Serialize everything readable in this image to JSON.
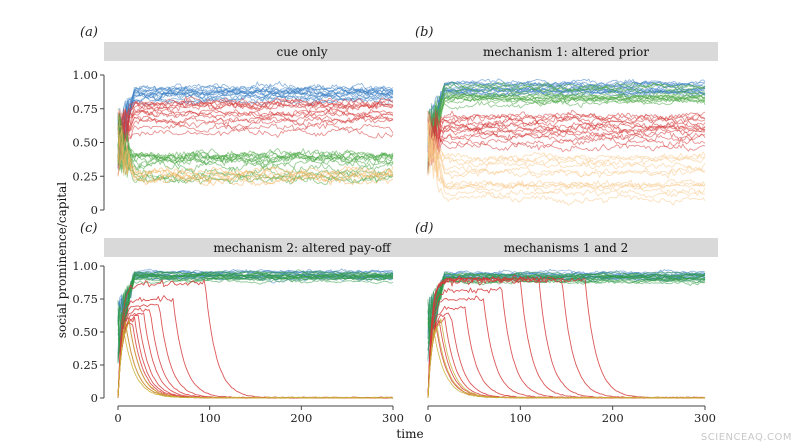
{
  "figure": {
    "watermark": "SCIENCEAQ.COM"
  },
  "chart_data": [
    {
      "type": "line",
      "panel_label": "(a)",
      "title": "cue only",
      "xlabel": "time",
      "ylabel": "social prominence/capital",
      "xlim": [
        0,
        300
      ],
      "ylim": [
        0,
        1
      ],
      "x_ticks": [],
      "y_ticks": [
        0,
        0.25,
        0.5,
        0.75,
        1.0
      ],
      "y_tick_labels": [
        "0",
        "0.25",
        "0.50",
        "0.75",
        "1.00"
      ],
      "series": [
        {
          "name": "blue group",
          "color": "#3b7fc4",
          "level_range": [
            0.8,
            0.94
          ],
          "noise": 0.045,
          "count": 14
        },
        {
          "name": "red group",
          "color": "#d63a3a",
          "level_range": [
            0.56,
            0.84
          ],
          "noise": 0.05,
          "count": 14
        },
        {
          "name": "green group",
          "color": "#4aa845",
          "level_range": [
            0.22,
            0.42
          ],
          "noise": 0.06,
          "count": 14
        },
        {
          "name": "orange group",
          "color": "#f2b45e",
          "level_range": [
            0.18,
            0.32
          ],
          "noise": 0.06,
          "count": 6
        }
      ]
    },
    {
      "type": "line",
      "panel_label": "(b)",
      "title": "mechanism 1: altered prior",
      "xlabel": "time",
      "ylabel": "social prominence/capital",
      "xlim": [
        0,
        300
      ],
      "ylim": [
        0,
        1
      ],
      "x_ticks": [],
      "y_ticks": [],
      "series": [
        {
          "name": "blue group",
          "color": "#3b7fc4",
          "level_range": [
            0.85,
            0.96
          ],
          "noise": 0.035,
          "count": 14
        },
        {
          "name": "green group",
          "color": "#4aa845",
          "level_range": [
            0.78,
            0.92
          ],
          "noise": 0.04,
          "count": 14
        },
        {
          "name": "red group",
          "color": "#d63a3a",
          "level_range": [
            0.45,
            0.7
          ],
          "noise": 0.05,
          "count": 14
        },
        {
          "name": "orange group",
          "color": "#f7c98a",
          "level_range": [
            0.02,
            0.45
          ],
          "noise": 0.05,
          "count": 12
        }
      ]
    },
    {
      "type": "line",
      "panel_label": "(c)",
      "title": "mechanism 2: altered pay-off",
      "xlabel": "time",
      "ylabel": "social prominence/capital",
      "xlim": [
        0,
        300
      ],
      "ylim": [
        0,
        1
      ],
      "x_ticks": [
        0,
        100,
        200,
        300
      ],
      "y_ticks": [
        0,
        0.25,
        0.5,
        0.75,
        1.0
      ],
      "y_tick_labels": [
        "0",
        "0.25",
        "0.50",
        "0.75",
        "1.00"
      ],
      "series": [
        {
          "name": "blue group",
          "color": "#3b7fc4",
          "level_range": [
            0.9,
            0.96
          ],
          "noise": 0.025,
          "count": 12
        },
        {
          "name": "green group",
          "color": "#2f9a45",
          "level_range": [
            0.88,
            0.95
          ],
          "noise": 0.025,
          "count": 14
        },
        {
          "name": "red group",
          "color": "#d63a3a",
          "decay_times": [
            8,
            12,
            15,
            18,
            22,
            28,
            35,
            45,
            60,
            95
          ],
          "count": 10
        },
        {
          "name": "orange group",
          "color": "#c9b23a",
          "decay_times": [
            5,
            8,
            12
          ],
          "count": 3
        }
      ]
    },
    {
      "type": "line",
      "panel_label": "(d)",
      "title": "mechanisms 1 and 2",
      "xlabel": "time",
      "ylabel": "social prominence/capital",
      "xlim": [
        0,
        300
      ],
      "ylim": [
        0,
        1
      ],
      "x_ticks": [
        0,
        100,
        200,
        300
      ],
      "y_ticks": [],
      "series": [
        {
          "name": "blue group",
          "color": "#3b7fc4",
          "level_range": [
            0.9,
            0.96
          ],
          "noise": 0.025,
          "count": 12
        },
        {
          "name": "green group",
          "color": "#2f9a45",
          "level_range": [
            0.88,
            0.95
          ],
          "noise": 0.025,
          "count": 14
        },
        {
          "name": "red group",
          "color": "#d63a3a",
          "decay_times": [
            8,
            12,
            18,
            25,
            40,
            60,
            80,
            100,
            120,
            145,
            170
          ],
          "count": 11
        },
        {
          "name": "orange group",
          "color": "#c9b23a",
          "decay_times": [
            5,
            9,
            14
          ],
          "count": 3
        }
      ]
    }
  ],
  "shared": {
    "xlabel": "time",
    "ylabel": "social prominence/capital"
  }
}
